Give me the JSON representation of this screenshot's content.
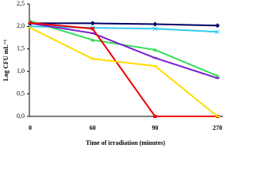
{
  "chart_data": {
    "type": "line",
    "xlabel": "Time of irradiation (minutes)",
    "ylabel": "Log CFU mL⁻¹",
    "categories": [
      "0",
      "60",
      "90",
      "270"
    ],
    "series": [
      {
        "color": "#000066",
        "marker": "diamond",
        "values": [
          2.07,
          2.07,
          2.05,
          2.02
        ]
      },
      {
        "color": "#33ccee",
        "marker": "x",
        "values": [
          2.0,
          1.97,
          1.95,
          1.88
        ]
      },
      {
        "color": "#33dd55",
        "marker": "triangle",
        "values": [
          2.12,
          1.7,
          1.48,
          0.9
        ]
      },
      {
        "color": "#7a1fd0",
        "marker": "bar",
        "values": [
          2.07,
          1.85,
          1.3,
          0.85
        ]
      },
      {
        "color": "#ee0000",
        "marker": "square",
        "values": [
          2.08,
          1.95,
          0,
          0
        ]
      },
      {
        "color": "#ffdd00",
        "marker": "bar",
        "values": [
          1.97,
          1.28,
          1.12,
          0
        ]
      }
    ],
    "ylim": [
      0,
      2.5
    ],
    "yticks": [
      {
        "value": 0,
        "label": "0,0"
      },
      {
        "value": 0.5,
        "label": "0,5"
      },
      {
        "value": 1,
        "label": "1,0"
      },
      {
        "value": 1.5,
        "label": "1,5"
      },
      {
        "value": 2,
        "label": "2,0"
      },
      {
        "value": 2.5,
        "label": "2,5"
      }
    ],
    "grid": false
  }
}
